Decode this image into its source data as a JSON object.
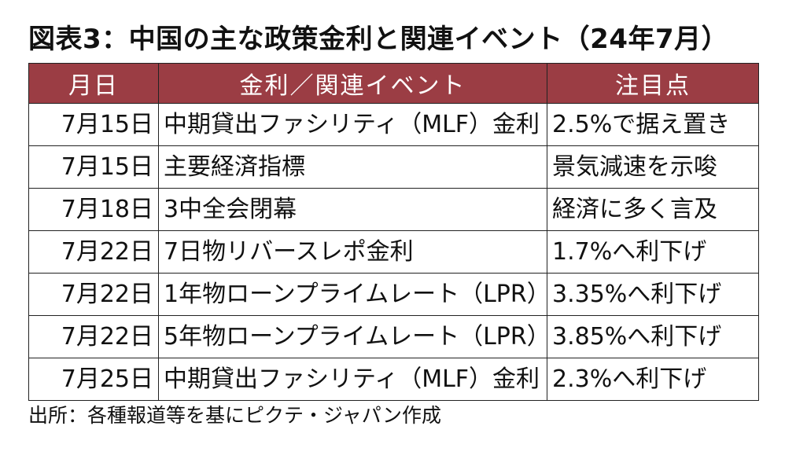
{
  "title": "図表3：中国の主な政策金利と関連イベント（24年7月）",
  "table": {
    "headers": [
      "月日",
      "金利／関連イベント",
      "注目点"
    ],
    "rows": [
      {
        "date": "7月15日",
        "event": "中期貸出ファシリティ（MLF）金利",
        "note": "2.5%で据え置き"
      },
      {
        "date": "7月15日",
        "event": "主要経済指標",
        "note": "景気減速を示唆"
      },
      {
        "date": "7月18日",
        "event": "3中全会閉幕",
        "note": "経済に多く言及"
      },
      {
        "date": "7月22日",
        "event": "7日物リバースレポ金利",
        "note": "1.7%へ利下げ"
      },
      {
        "date": "7月22日",
        "event": "1年物ローンプライムレート（LPR）",
        "note": "3.35%へ利下げ"
      },
      {
        "date": "7月22日",
        "event": "5年物ローンプライムレート（LPR）",
        "note": "3.85%へ利下げ"
      },
      {
        "date": "7月25日",
        "event": "中期貸出ファシリティ（MLF）金利",
        "note": "2.3%へ利下げ"
      }
    ]
  },
  "source": "出所：各種報道等を基にピクテ・ジャパン作成",
  "colors": {
    "header_bg": "#9b3d44",
    "header_text": "#ffffff",
    "border": "#222222"
  }
}
